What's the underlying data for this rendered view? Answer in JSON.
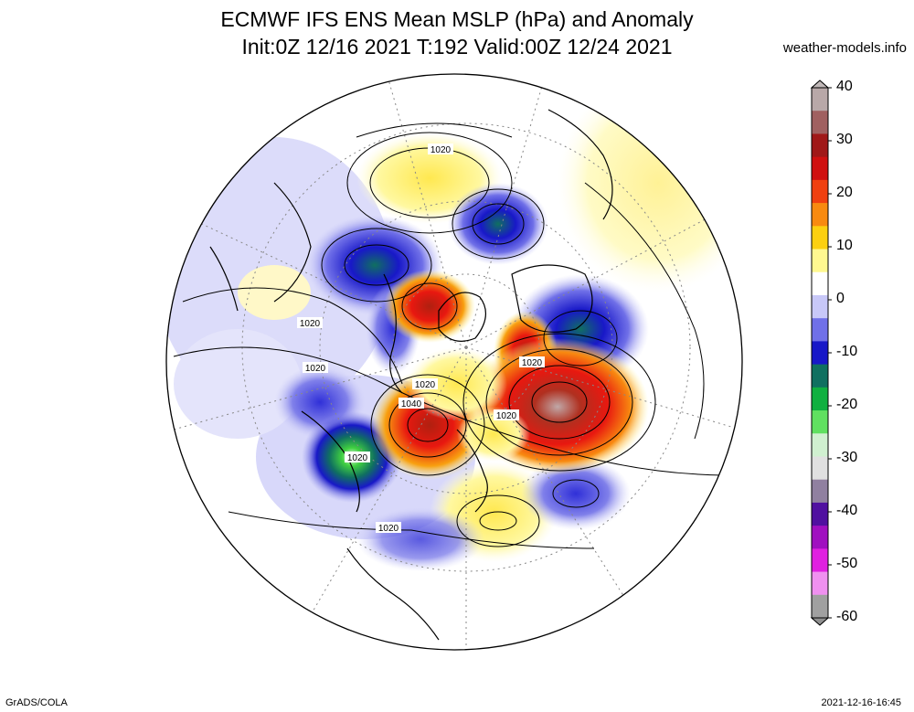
{
  "header": {
    "title_line1": "ECMWF IFS ENS Mean MSLP (hPa) and Anomaly",
    "title_line2": "Init:0Z 12/16 2021  T:192 Valid:00Z 12/24 2021",
    "credit": "weather-models.info"
  },
  "footer": {
    "left": "GrADS/COLA",
    "right": "2021-12-16-16:45"
  },
  "colorbar": {
    "labels": [
      "40",
      "30",
      "20",
      "10",
      "0",
      "-10",
      "-20",
      "-30",
      "-40",
      "-50",
      "-60"
    ],
    "colors": [
      "#b8a8a8",
      "#a06060",
      "#a01818",
      "#d01010",
      "#f04010",
      "#f88a10",
      "#fcd010",
      "#fff890",
      "#ffffff",
      "#c8c8f8",
      "#7070e8",
      "#1818c8",
      "#107060",
      "#10b040",
      "#60e060",
      "#d0f0d0",
      "#e0e0e0",
      "#9080a0",
      "#5010a0",
      "#a010c0",
      "#e020e0",
      "#f090f0",
      "#a0a0a0"
    ]
  },
  "map": {
    "contour_labels": [
      "1020",
      "1020",
      "1020",
      "1020",
      "1020",
      "1040",
      "1020",
      "1020",
      "1020"
    ]
  }
}
